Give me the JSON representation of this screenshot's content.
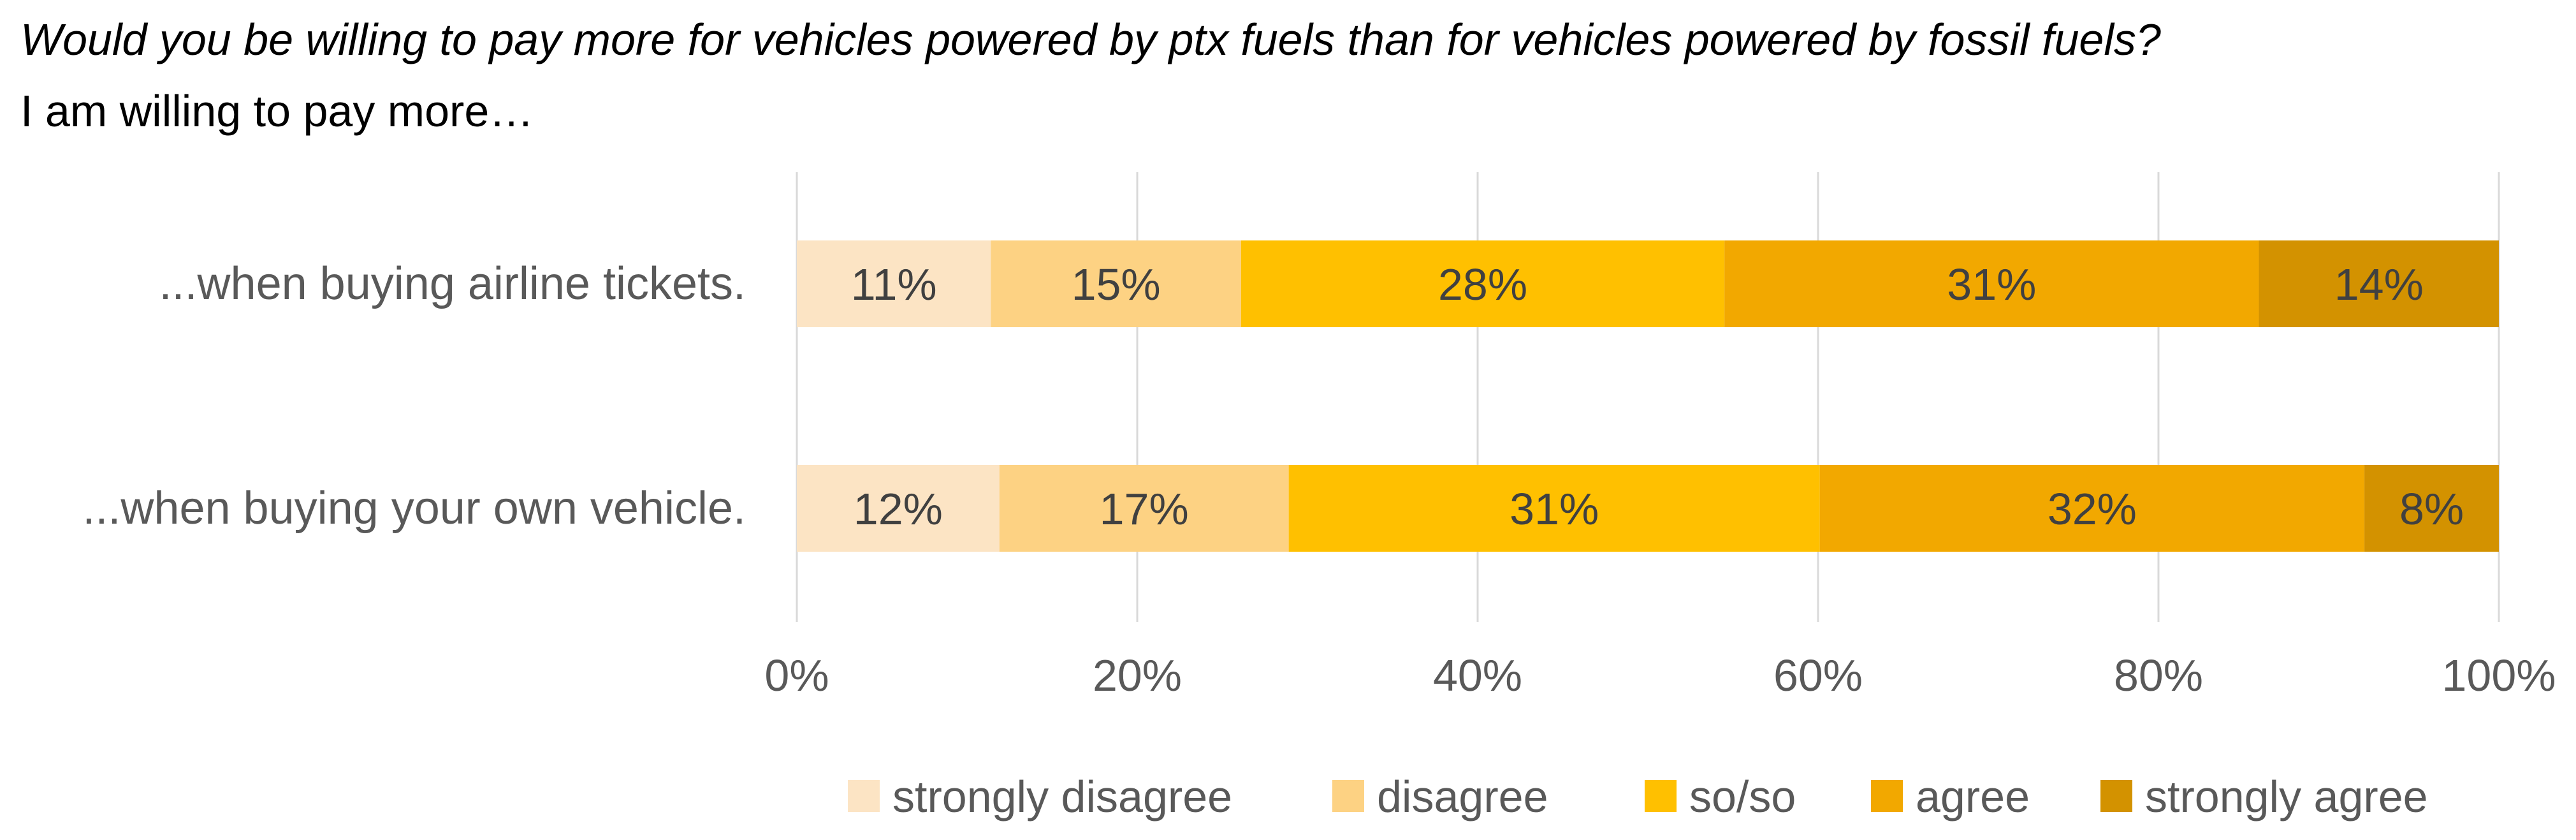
{
  "header": {
    "title": "Would you be willing to pay more for vehicles powered by ptx fuels than for vehicles powered by fossil fuels?",
    "subtitle": "I am willing to pay more…"
  },
  "chart_data": {
    "type": "bar",
    "orientation": "horizontal",
    "stacked": true,
    "title": "Would you be willing to pay more for vehicles powered by ptx fuels than for vehicles powered by fossil fuels?",
    "subtitle": "I am willing to pay more…",
    "categories": [
      "...when buying airline tickets.",
      "...when buying your own vehicle."
    ],
    "series": [
      {
        "name": "strongly disagree",
        "color": "#FCE4C4",
        "values": [
          11.4,
          11.9
        ],
        "labels": [
          "11%",
          "12%"
        ]
      },
      {
        "name": "disagree",
        "color": "#FDD283",
        "values": [
          14.7,
          17.0
        ],
        "labels": [
          "15%",
          "17%"
        ]
      },
      {
        "name": "so/so",
        "color": "#FFC000",
        "values": [
          28.4,
          31.2
        ],
        "labels": [
          "28%",
          "31%"
        ]
      },
      {
        "name": "agree",
        "color": "#F2A800",
        "values": [
          31.4,
          32.0
        ],
        "labels": [
          "31%",
          "32%"
        ]
      },
      {
        "name": "strongly agree",
        "color": "#D39200",
        "values": [
          14.1,
          7.9
        ],
        "labels": [
          "14%",
          "8%"
        ]
      }
    ],
    "xlim": [
      0,
      100
    ],
    "xticks": [
      "0%",
      "20%",
      "40%",
      "60%",
      "80%",
      "100%"
    ],
    "grid": true,
    "legend": "bottom",
    "xlabel": "",
    "ylabel": ""
  }
}
